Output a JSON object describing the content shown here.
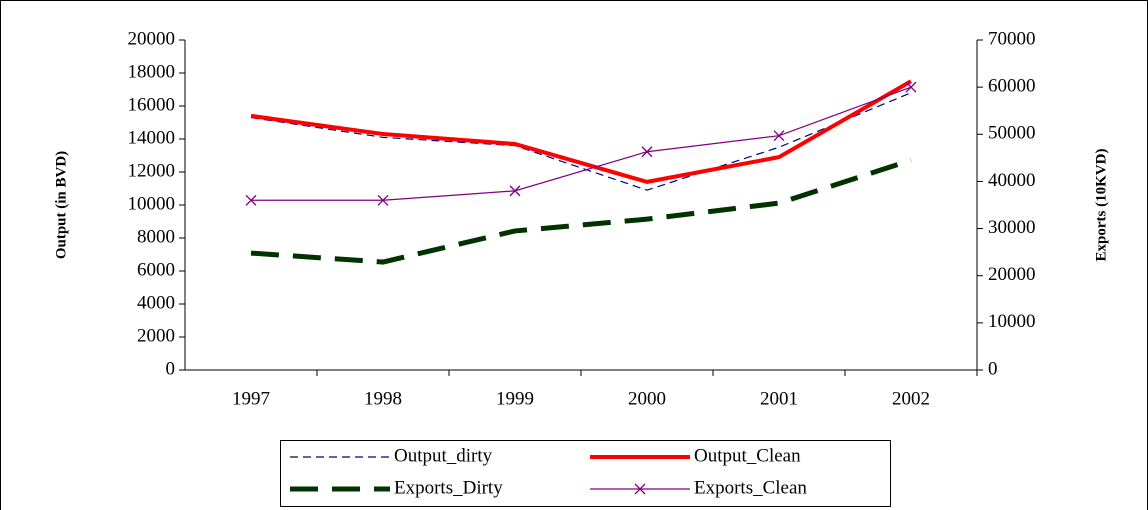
{
  "chart_data": {
    "type": "line",
    "categories": [
      "1997",
      "1998",
      "1999",
      "2000",
      "2001",
      "2002"
    ],
    "y_label": "Output (in BVD)",
    "y2_label": "Exports (10KVD)",
    "ylim": [
      0,
      20000
    ],
    "yticks": [
      0,
      2000,
      4000,
      6000,
      8000,
      10000,
      12000,
      14000,
      16000,
      18000,
      20000
    ],
    "y2lim": [
      0,
      70000
    ],
    "y2ticks": [
      0,
      10000,
      20000,
      30000,
      40000,
      50000,
      60000,
      70000
    ],
    "legend": "bottom",
    "series": [
      {
        "name": "Output_dirty",
        "color": "#000080",
        "style": "dashed",
        "values": [
          15300,
          14100,
          13600,
          10900,
          13500,
          16800
        ]
      },
      {
        "name": "Output_Clean",
        "color": "#ff0000",
        "style": "thick",
        "values": [
          15400,
          14300,
          13700,
          11400,
          12900,
          17500
        ]
      },
      {
        "name": "Exports_Dirty",
        "color": "#003300",
        "style": "thick-dashed",
        "axis": "y2",
        "values": [
          24800,
          22900,
          29500,
          32000,
          35400,
          44500
        ]
      },
      {
        "name": "Exports_Clean",
        "color": "#800080",
        "style": "cross",
        "axis": "y2",
        "values": [
          36000,
          36000,
          38000,
          46300,
          49700,
          60000
        ]
      }
    ]
  }
}
